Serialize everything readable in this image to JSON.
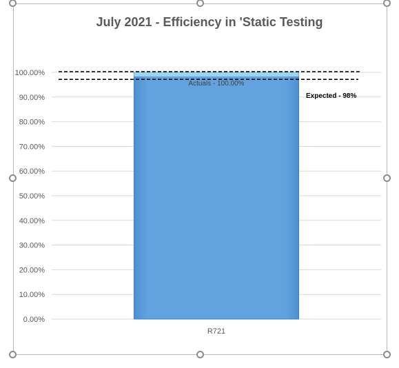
{
  "chart_data": {
    "type": "bar",
    "title": "July 2021 - Efficiency in 'Static Testing",
    "xlabel": "",
    "ylabel": "",
    "categories": [
      "R721"
    ],
    "series": [
      {
        "values": [
          100.0
        ]
      }
    ],
    "ylim": [
      0,
      100
    ],
    "yticks": [
      "0.00%",
      "10.00%",
      "20.00%",
      "30.00%",
      "40.00%",
      "50.00%",
      "60.00%",
      "70.00%",
      "80.00%",
      "90.00%",
      "100.00%"
    ],
    "ytick_values": [
      0,
      10,
      20,
      30,
      40,
      50,
      60,
      70,
      80,
      90,
      100
    ],
    "grid": true,
    "bar_color": "#62a2df",
    "bar_data_label": "Actuals - 100.00%",
    "reference_lines": [
      {
        "value": 100,
        "style": "dashed",
        "color": "#000000"
      },
      {
        "value": 98,
        "style": "dashed",
        "color": "#000000",
        "label": "Expected - 98%"
      }
    ]
  }
}
